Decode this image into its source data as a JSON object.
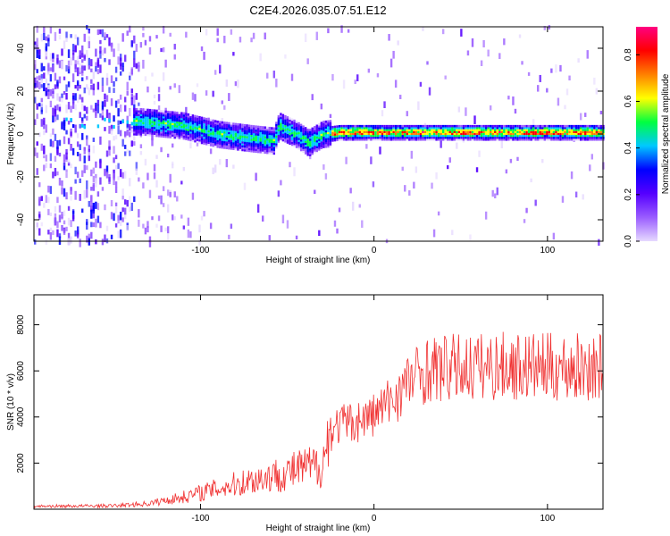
{
  "title": "C2E4.2026.035.07.51.E12",
  "colors": {
    "snr_line": "#f03030",
    "colormap": [
      "#e6d9ff",
      "#9a5cff",
      "#5500ff",
      "#0000ff",
      "#00c8ff",
      "#00ff40",
      "#ffff00",
      "#ff8000",
      "#ff0000",
      "#ff0080"
    ]
  },
  "chart_data": [
    {
      "id": "spectrogram",
      "type": "heatmap",
      "xlabel": "Height of straight line (km)",
      "ylabel": "Frequency (Hz)",
      "xlim": [
        -196,
        132
      ],
      "ylim": [
        -50,
        50
      ],
      "xticks": [
        -100,
        0,
        100
      ],
      "yticks": [
        -40,
        -20,
        0,
        20,
        40
      ],
      "colorbar": {
        "label": "Normalized spectral amplitude",
        "range": [
          0,
          0.92
        ],
        "ticks": [
          0.0,
          0.2,
          0.4,
          0.6,
          0.8
        ]
      },
      "trace_centerline": {
        "x": [
          -135,
          -110,
          -90,
          -70,
          -58,
          -55,
          -45,
          -38,
          -30,
          -20,
          0,
          50,
          100,
          130
        ],
        "y": [
          6,
          4,
          0,
          -2,
          -3,
          4,
          0,
          -4,
          0,
          1,
          1,
          1,
          1,
          1
        ]
      }
    },
    {
      "id": "snr",
      "type": "line",
      "xlabel": "Height of straight line (km)",
      "ylabel": "SNR (10 * v/v)",
      "xlim": [
        -196,
        132
      ],
      "ylim": [
        0,
        9300
      ],
      "xticks": [
        -100,
        0,
        100
      ],
      "yticks": [
        2000,
        4000,
        6000,
        8000
      ],
      "envelope": {
        "x": [
          -196,
          -150,
          -130,
          -110,
          -90,
          -70,
          -50,
          -40,
          -30,
          -25,
          -20,
          -10,
          0,
          10,
          20,
          30,
          50,
          75,
          100,
          132
        ],
        "y": [
          120,
          140,
          230,
          500,
          850,
          1200,
          1500,
          1700,
          1800,
          3200,
          3600,
          3700,
          4000,
          4600,
          5400,
          5900,
          6000,
          6050,
          6000,
          6000
        ]
      }
    }
  ]
}
